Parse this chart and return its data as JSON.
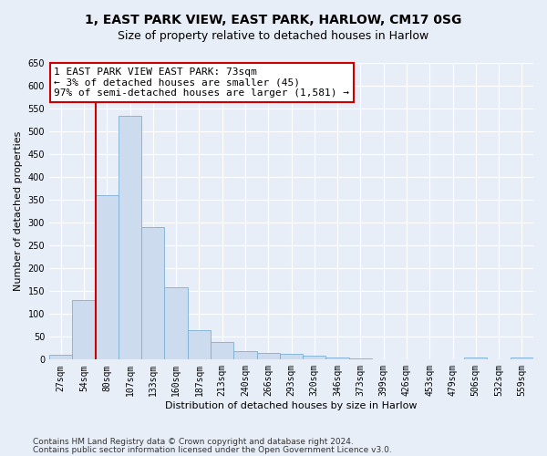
{
  "title": "1, EAST PARK VIEW, EAST PARK, HARLOW, CM17 0SG",
  "subtitle": "Size of property relative to detached houses in Harlow",
  "xlabel": "Distribution of detached houses by size in Harlow",
  "ylabel": "Number of detached properties",
  "bar_color": "#ccdcee",
  "bar_edge_color": "#7aafd4",
  "categories": [
    "27sqm",
    "54sqm",
    "80sqm",
    "107sqm",
    "133sqm",
    "160sqm",
    "187sqm",
    "213sqm",
    "240sqm",
    "266sqm",
    "293sqm",
    "320sqm",
    "346sqm",
    "373sqm",
    "399sqm",
    "426sqm",
    "453sqm",
    "479sqm",
    "506sqm",
    "532sqm",
    "559sqm"
  ],
  "values": [
    10,
    130,
    360,
    535,
    290,
    158,
    65,
    38,
    18,
    15,
    12,
    8,
    4,
    2,
    1,
    1,
    0,
    0,
    4,
    0,
    4
  ],
  "ylim": [
    0,
    650
  ],
  "yticks": [
    0,
    50,
    100,
    150,
    200,
    250,
    300,
    350,
    400,
    450,
    500,
    550,
    600,
    650
  ],
  "property_line_x": 1.5,
  "annotation_text": "1 EAST PARK VIEW EAST PARK: 73sqm\n← 3% of detached houses are smaller (45)\n97% of semi-detached houses are larger (1,581) →",
  "annotation_box_color": "#ffffff",
  "annotation_box_edge_color": "#cc0000",
  "property_line_color": "#cc0000",
  "footer1": "Contains HM Land Registry data © Crown copyright and database right 2024.",
  "footer2": "Contains public sector information licensed under the Open Government Licence v3.0.",
  "background_color": "#e8eef8",
  "plot_background_color": "#e8eef8",
  "grid_color": "#ffffff",
  "title_fontsize": 10,
  "subtitle_fontsize": 9,
  "axis_label_fontsize": 8,
  "tick_fontsize": 7,
  "annotation_fontsize": 8,
  "footer_fontsize": 6.5
}
